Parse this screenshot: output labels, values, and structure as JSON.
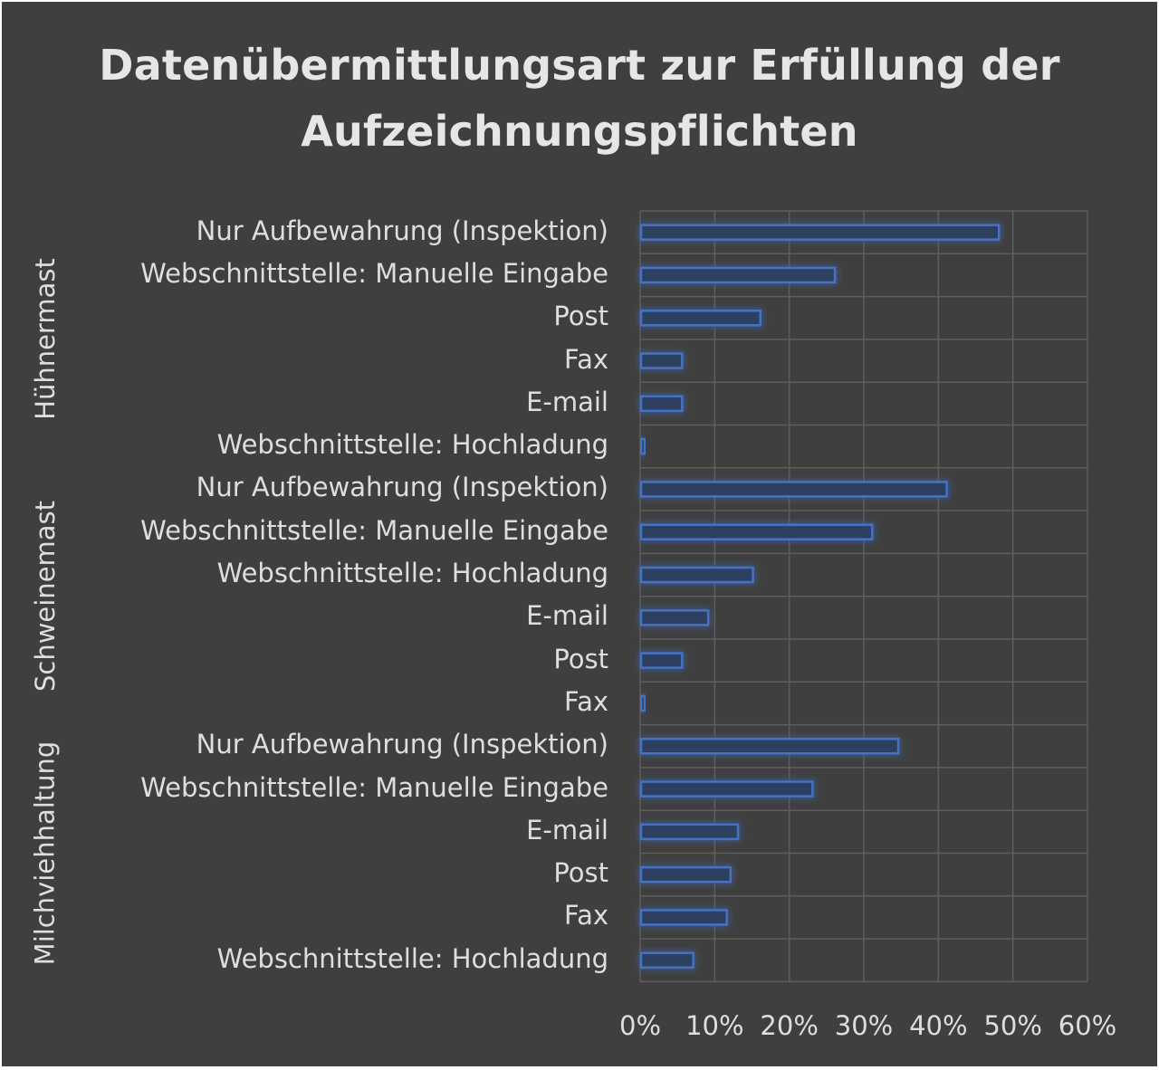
{
  "chart_data": {
    "type": "bar",
    "orientation": "horizontal",
    "title": [
      "Datenübermittlungsart zur Erfüllung der",
      "Aufzeichnungspflichten"
    ],
    "xlim": [
      0,
      60
    ],
    "xticks": [
      "0%",
      "10%",
      "20%",
      "30%",
      "40%",
      "50%",
      "60%"
    ],
    "bar_color": "#4472c4",
    "groups": [
      {
        "name": "Hühnermast",
        "items": [
          {
            "label": "Nur Aufbewahrung (Inspektion)",
            "value": 48
          },
          {
            "label": "Webschnittstelle: Manuelle Eingabe",
            "value": 26
          },
          {
            "label": "Post",
            "value": 16
          },
          {
            "label": "Fax",
            "value": 5.5
          },
          {
            "label": "E-mail",
            "value": 5.5
          },
          {
            "label": "Webschnittstelle: Hochladung",
            "value": 0.5
          }
        ]
      },
      {
        "name": "Schweinemast",
        "items": [
          {
            "label": "Nur Aufbewahrung (Inspektion)",
            "value": 41
          },
          {
            "label": "Webschnittstelle: Manuelle Eingabe",
            "value": 31
          },
          {
            "label": "Webschnittstelle: Hochladung",
            "value": 15
          },
          {
            "label": "E-mail",
            "value": 9
          },
          {
            "label": "Post",
            "value": 5.5
          },
          {
            "label": "Fax",
            "value": 0.5
          }
        ]
      },
      {
        "name": "Milchviehhaltung",
        "items": [
          {
            "label": "Nur Aufbewahrung (Inspektion)",
            "value": 34.5
          },
          {
            "label": "Webschnittstelle: Manuelle Eingabe",
            "value": 23
          },
          {
            "label": "E-mail",
            "value": 13
          },
          {
            "label": "Post",
            "value": 12
          },
          {
            "label": "Fax",
            "value": 11.5
          },
          {
            "label": "Webschnittstelle: Hochladung",
            "value": 7
          }
        ]
      }
    ]
  }
}
